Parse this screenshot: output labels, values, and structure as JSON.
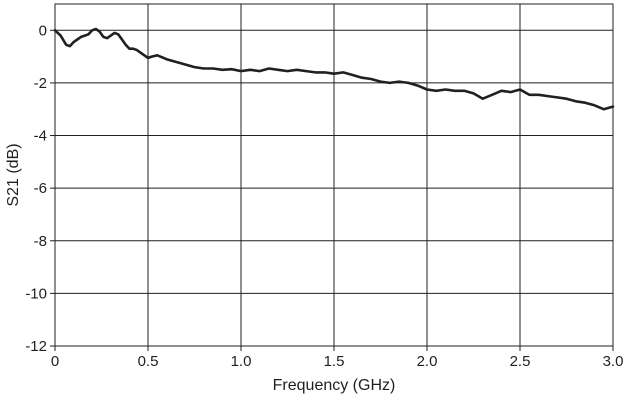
{
  "chart_data": {
    "type": "line",
    "title": "",
    "xlabel": "Frequency (GHz)",
    "ylabel": "S21 (dB)",
    "xlim": [
      0,
      3.0
    ],
    "ylim": [
      -12,
      1
    ],
    "grid": true,
    "x_ticks": [
      0,
      0.5,
      1.0,
      1.5,
      2.0,
      2.5,
      3.0
    ],
    "x_tick_labels": [
      "0",
      "0.5",
      "1.0",
      "1.5",
      "2.0",
      "2.5",
      "3.0"
    ],
    "y_ticks": [
      0,
      -2,
      -4,
      -6,
      -8,
      -10,
      -12
    ],
    "y_tick_labels": [
      "0",
      "-2",
      "-4",
      "-6",
      "-8",
      "-10",
      "-12"
    ],
    "line_color": "#231f20",
    "series": [
      {
        "x": [
          0.0,
          0.03,
          0.06,
          0.08,
          0.1,
          0.12,
          0.14,
          0.16,
          0.18,
          0.2,
          0.22,
          0.24,
          0.26,
          0.28,
          0.3,
          0.32,
          0.34,
          0.36,
          0.38,
          0.4,
          0.42,
          0.44,
          0.46,
          0.48,
          0.5,
          0.52,
          0.55,
          0.6,
          0.65,
          0.7,
          0.75,
          0.8,
          0.85,
          0.9,
          0.95,
          1.0,
          1.05,
          1.1,
          1.15,
          1.2,
          1.25,
          1.3,
          1.35,
          1.4,
          1.45,
          1.5,
          1.55,
          1.6,
          1.65,
          1.7,
          1.75,
          1.8,
          1.85,
          1.9,
          1.95,
          2.0,
          2.05,
          2.1,
          2.15,
          2.2,
          2.25,
          2.3,
          2.35,
          2.4,
          2.45,
          2.5,
          2.55,
          2.6,
          2.65,
          2.7,
          2.75,
          2.8,
          2.85,
          2.9,
          2.95,
          3.0
        ],
        "y": [
          0.0,
          -0.2,
          -0.55,
          -0.6,
          -0.45,
          -0.35,
          -0.25,
          -0.2,
          -0.15,
          0.0,
          0.05,
          -0.05,
          -0.25,
          -0.3,
          -0.2,
          -0.1,
          -0.15,
          -0.35,
          -0.55,
          -0.7,
          -0.7,
          -0.75,
          -0.85,
          -0.95,
          -1.05,
          -1.0,
          -0.95,
          -1.1,
          -1.2,
          -1.3,
          -1.4,
          -1.45,
          -1.45,
          -1.5,
          -1.48,
          -1.55,
          -1.5,
          -1.55,
          -1.45,
          -1.5,
          -1.55,
          -1.5,
          -1.55,
          -1.6,
          -1.6,
          -1.65,
          -1.6,
          -1.7,
          -1.8,
          -1.85,
          -1.95,
          -2.0,
          -1.95,
          -2.0,
          -2.1,
          -2.25,
          -2.3,
          -2.25,
          -2.3,
          -2.3,
          -2.4,
          -2.6,
          -2.45,
          -2.3,
          -2.35,
          -2.25,
          -2.45,
          -2.45,
          -2.5,
          -2.55,
          -2.6,
          -2.7,
          -2.75,
          -2.85,
          -3.0,
          -2.9
        ]
      }
    ]
  }
}
